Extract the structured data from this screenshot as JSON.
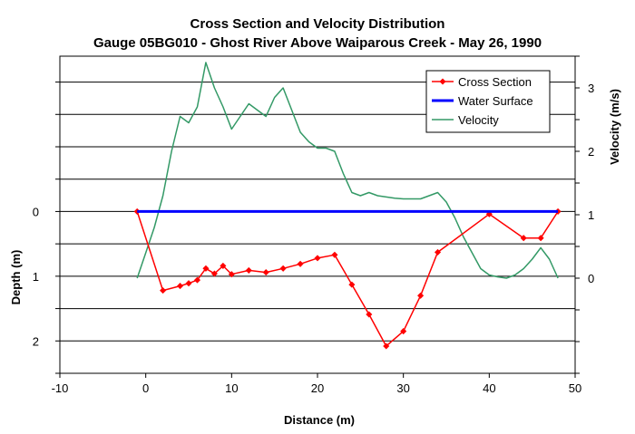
{
  "chart_data": {
    "type": "line",
    "title": "Cross Section and Velocity Distribution",
    "subtitle": "Gauge 05BG010 - Ghost River Above Waiparous Creek - May 26, 1990",
    "xlabel": "Distance (m)",
    "ylabel_left": "Depth (m)",
    "ylabel_right": "Velocity (m/s)",
    "xlim": [
      -10,
      50
    ],
    "xticks": [
      "-10",
      "0",
      "10",
      "20",
      "30",
      "40",
      "50"
    ],
    "depth_ylim": [
      2.5,
      -2.4
    ],
    "depth_ticks": [
      "0",
      "1",
      "2"
    ],
    "velocity_ylim": [
      -1.5,
      3.5
    ],
    "velocity_ticks": [
      "0",
      "1",
      "2",
      "3"
    ],
    "grid": true,
    "legend_position": "top-right",
    "series": [
      {
        "name": "Cross Section",
        "axis": "depth",
        "color": "#ff0000",
        "markers": true,
        "x": [
          -1,
          2,
          4,
          5,
          6,
          7,
          8,
          9,
          10,
          12,
          14,
          16,
          18,
          20,
          22,
          24,
          26,
          28,
          30,
          32,
          34,
          40,
          44,
          46,
          48
        ],
        "y": [
          0,
          1.22,
          1.15,
          1.11,
          1.06,
          0.88,
          0.96,
          0.84,
          0.97,
          0.91,
          0.94,
          0.88,
          0.81,
          0.72,
          0.67,
          1.13,
          1.59,
          2.08,
          1.85,
          1.3,
          0.63,
          0.04,
          0.41,
          0.41,
          0
        ]
      },
      {
        "name": "Water Surface",
        "axis": "depth",
        "color": "#0000ff",
        "markers": false,
        "x": [
          -1,
          48
        ],
        "y": [
          0,
          0
        ]
      },
      {
        "name": "Velocity",
        "axis": "velocity",
        "color": "#339966",
        "markers": false,
        "x": [
          -1,
          0,
          1,
          2,
          3,
          4,
          5,
          6,
          7,
          8,
          9,
          10,
          11,
          12,
          13,
          14,
          15,
          16,
          17,
          18,
          19,
          20,
          21,
          22,
          23,
          24,
          25,
          26,
          27,
          28,
          29,
          30,
          31,
          32,
          33,
          34,
          35,
          36,
          37,
          38,
          39,
          40,
          41,
          42,
          43,
          44,
          45,
          46,
          47,
          48
        ],
        "y": [
          0,
          0.4,
          0.8,
          1.3,
          2.0,
          2.55,
          2.45,
          2.7,
          3.4,
          3.0,
          2.7,
          2.35,
          2.55,
          2.75,
          2.65,
          2.55,
          2.85,
          3.0,
          2.65,
          2.3,
          2.15,
          2.05,
          2.05,
          2.0,
          1.65,
          1.35,
          1.3,
          1.35,
          1.3,
          1.28,
          1.26,
          1.25,
          1.25,
          1.25,
          1.3,
          1.35,
          1.2,
          0.95,
          0.65,
          0.4,
          0.15,
          0.05,
          0.02,
          0.0,
          0.05,
          0.15,
          0.3,
          0.48,
          0.3,
          0.0
        ]
      }
    ]
  }
}
